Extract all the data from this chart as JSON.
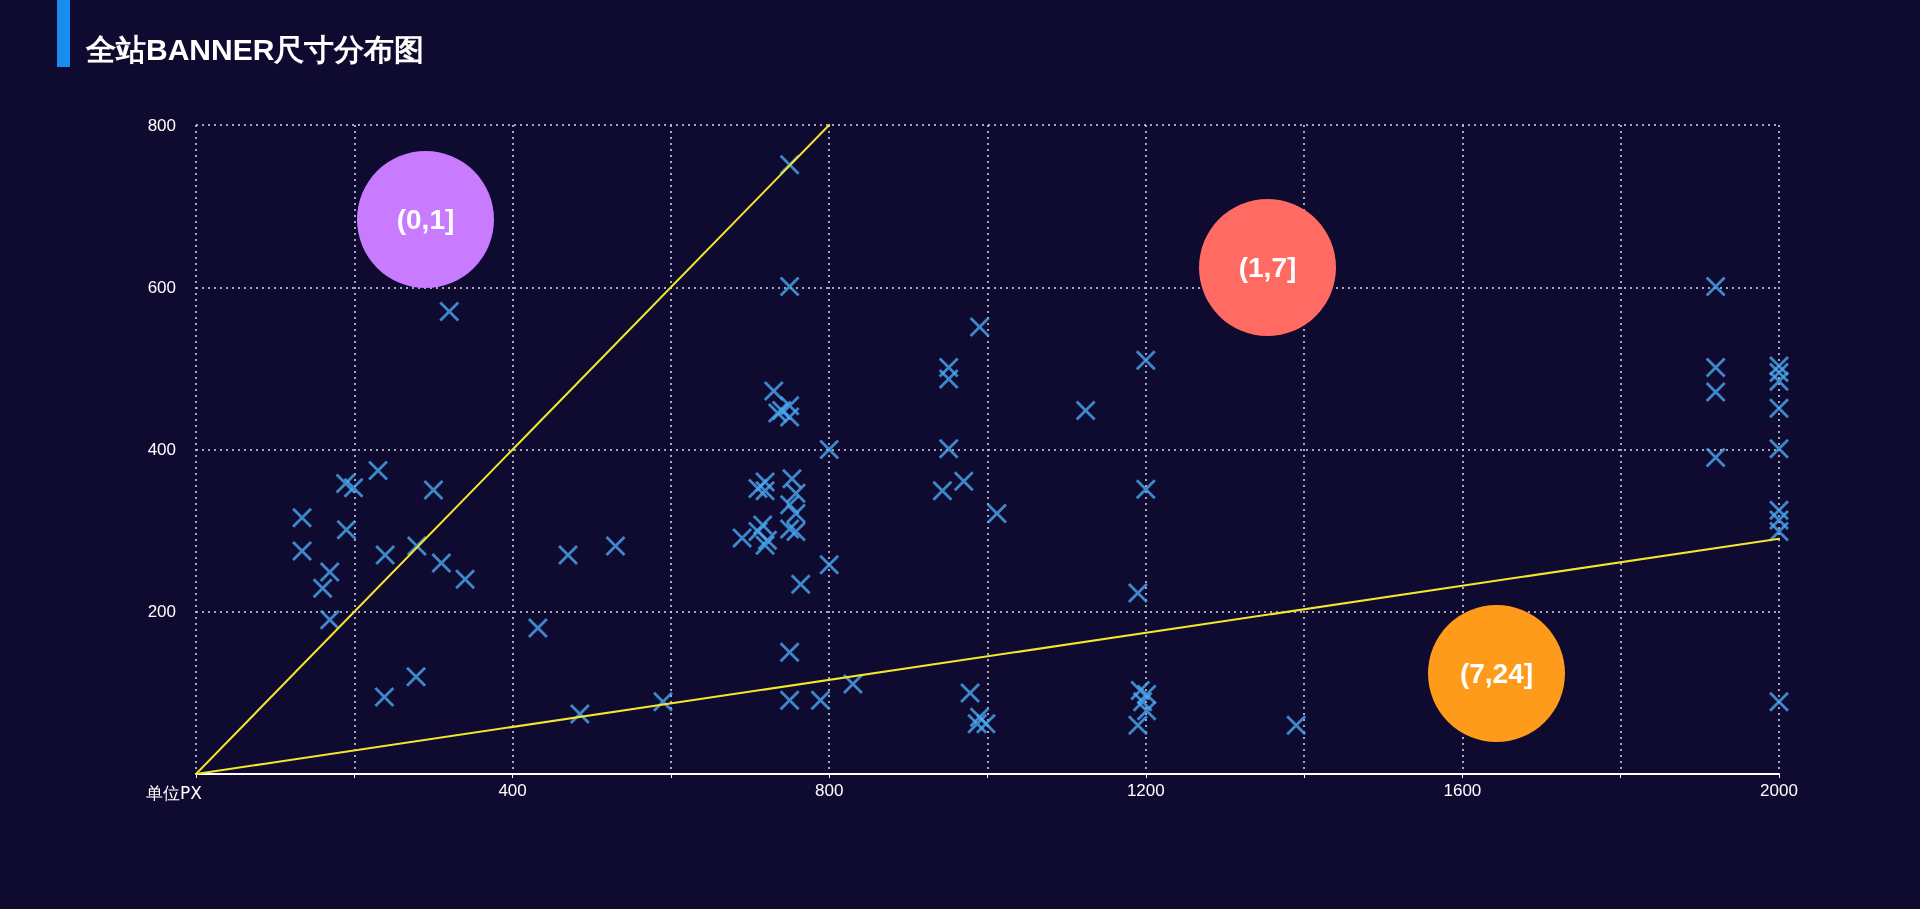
{
  "chart_data": {
    "type": "scatter",
    "title": "全站BANNER尺寸分布图",
    "xlabel": "单位PX",
    "xlim": [
      0,
      2000
    ],
    "xticks": [
      {
        "value": 0,
        "label": null
      },
      {
        "value": 200,
        "label": null
      },
      400,
      {
        "value": 600,
        "label": null
      },
      800,
      {
        "value": 1000,
        "label": null
      },
      1200,
      {
        "value": 1400,
        "label": null
      },
      1600,
      {
        "value": 1800,
        "label": null
      },
      2000
    ],
    "ylim": [
      0,
      800
    ],
    "yticks": [
      {
        "value": 0,
        "label": null
      },
      200,
      400,
      600,
      800
    ],
    "grid": true,
    "series": [
      {
        "marker": "cross",
        "color": "#4aa8f0",
        "x": [
          134,
          134,
          169,
          160,
          169,
          189,
          199,
          190,
          230,
          239,
          279,
          300,
          310,
          340,
          320,
          238,
          278,
          432,
          470,
          530,
          485,
          590,
          750,
          750,
          730,
          740,
          750,
          750,
          735,
          800,
          719,
          719,
          710,
          753,
          758,
          750,
          758,
          716,
          710,
          722,
          719,
          690,
          750,
          758,
          800,
          764,
          750,
          750,
          789,
          830,
          951,
          951,
          951,
          943,
          970,
          990,
          1012,
          978,
          990,
          987,
          998,
          1124,
          1200,
          1200,
          1190,
          1193,
          1201,
          1196,
          1201,
          1190,
          1390,
          1920,
          1920,
          1920,
          1920,
          2000,
          2000,
          2000,
          2000,
          2000,
          2000,
          2000,
          2000,
          2000
        ],
        "values": [
          316,
          275,
          249,
          229,
          190,
          358,
          353,
          301,
          374,
          270,
          281,
          350,
          260,
          240,
          570,
          95,
          120,
          180,
          270,
          281,
          74,
          89,
          751,
          601,
          472,
          448,
          454,
          440,
          445,
          400,
          360,
          349,
          352,
          364,
          346,
          332,
          321,
          307,
          299,
          288,
          282,
          291,
          302,
          299,
          258,
          234,
          150,
          91,
          91,
          111,
          501,
          487,
          401,
          349,
          361,
          551,
          321,
          100,
          70,
          62,
          62,
          448,
          510,
          351,
          223,
          103,
          98,
          89,
          78,
          60,
          60,
          601,
          501,
          471,
          390,
          503,
          495,
          484,
          451,
          401,
          325,
          313,
          299,
          89
        ]
      },
      {
        "type": "line",
        "color": "#f2e62e",
        "x": [
          0,
          800
        ],
        "values": [
          0,
          800
        ]
      },
      {
        "type": "line",
        "color": "#f2e62e",
        "x": [
          0,
          2000
        ],
        "values": [
          0,
          290
        ]
      }
    ],
    "annotations": [
      "(0,1]",
      "(1,7]",
      "(7,24]"
    ]
  }
}
